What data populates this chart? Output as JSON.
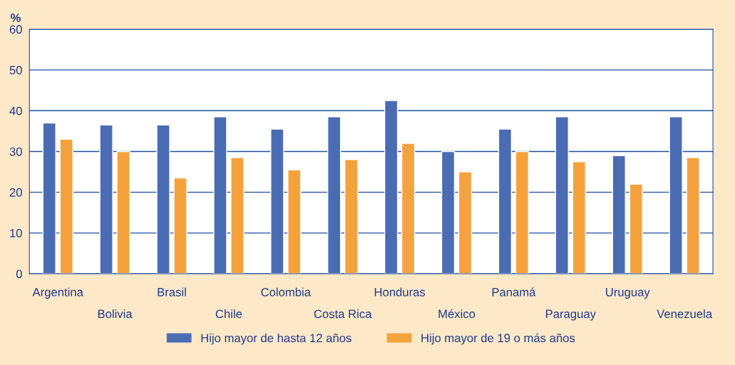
{
  "chart_data": {
    "type": "bar",
    "ylabel": "%",
    "categories": [
      "Argentina",
      "Bolivia",
      "Brasil",
      "Chile",
      "Colombia",
      "Costa Rica",
      "Honduras",
      "México",
      "Panamá",
      "Paraguay",
      "Uruguay",
      "Venezuela"
    ],
    "series": [
      {
        "name": "Hijo mayor de hasta 12 años",
        "color": "#4a6cb3",
        "values": [
          37,
          36.5,
          36.5,
          38.5,
          35.5,
          38.5,
          42.5,
          30,
          35.5,
          38.5,
          29,
          38.5
        ]
      },
      {
        "name": "Hijo mayor de 19 o más años",
        "color": "#f6a23c",
        "values": [
          33,
          30,
          23.5,
          28.5,
          25.5,
          28,
          32,
          25,
          30,
          27.5,
          22,
          28.5
        ]
      }
    ],
    "ylim": [
      0,
      60
    ],
    "yticks": [
      0,
      10,
      20,
      30,
      40,
      50,
      60
    ],
    "grid": "y",
    "legend": "bottom"
  }
}
